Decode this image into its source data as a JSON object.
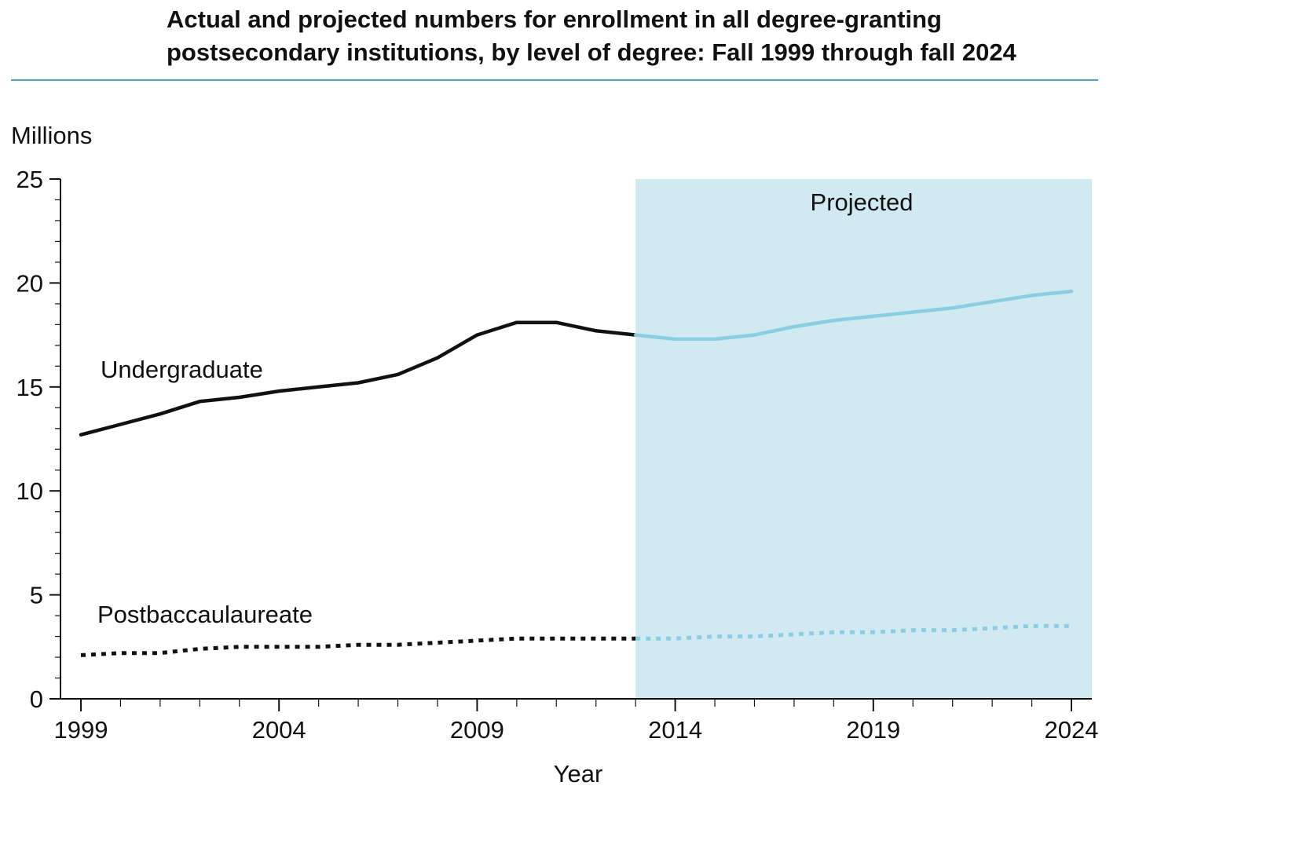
{
  "chart_data": {
    "type": "line",
    "title": "Actual and projected numbers for enrollment in all degree-granting postsecondary institutions, by level of degree: Fall 1999 through fall 2024",
    "ylabel": "Millions",
    "xlabel": "Year",
    "xlim": [
      1999,
      2024
    ],
    "ylim": [
      0,
      25
    ],
    "y_ticks": [
      0,
      5,
      10,
      15,
      20,
      25
    ],
    "y_tick_labels": [
      "0",
      "5",
      "10",
      "15",
      "20",
      "25"
    ],
    "x_ticks": [
      1999,
      2004,
      2009,
      2014,
      2019,
      2024
    ],
    "x_tick_labels": [
      "1999",
      "2004",
      "2009",
      "2014",
      "2019",
      "2024"
    ],
    "grid": false,
    "projection": {
      "label": "Projected",
      "start_year": 2013,
      "end_year": 2024
    },
    "colors": {
      "actual": "#111111",
      "projected": "#8ccde6",
      "projection_band": "#d1eaf1",
      "title_rule": "#4aa6d2"
    },
    "series": [
      {
        "name": "Undergraduate",
        "style": "solid",
        "x": [
          1999,
          2000,
          2001,
          2002,
          2003,
          2004,
          2005,
          2006,
          2007,
          2008,
          2009,
          2010,
          2011,
          2012,
          2013,
          2014,
          2015,
          2016,
          2017,
          2018,
          2019,
          2020,
          2021,
          2022,
          2023,
          2024
        ],
        "values": [
          12.7,
          13.2,
          13.7,
          14.3,
          14.5,
          14.8,
          15.0,
          15.2,
          15.6,
          16.4,
          17.5,
          18.1,
          18.1,
          17.7,
          17.5,
          17.3,
          17.3,
          17.5,
          17.9,
          18.2,
          18.4,
          18.6,
          18.8,
          19.1,
          19.4,
          19.6
        ]
      },
      {
        "name": "Postbaccaulaureate",
        "style": "dotted",
        "x": [
          1999,
          2000,
          2001,
          2002,
          2003,
          2004,
          2005,
          2006,
          2007,
          2008,
          2009,
          2010,
          2011,
          2012,
          2013,
          2014,
          2015,
          2016,
          2017,
          2018,
          2019,
          2020,
          2021,
          2022,
          2023,
          2024
        ],
        "values": [
          2.1,
          2.2,
          2.2,
          2.4,
          2.5,
          2.5,
          2.5,
          2.6,
          2.6,
          2.7,
          2.8,
          2.9,
          2.9,
          2.9,
          2.9,
          2.9,
          3.0,
          3.0,
          3.1,
          3.2,
          3.2,
          3.3,
          3.3,
          3.4,
          3.5,
          3.5
        ]
      }
    ]
  }
}
